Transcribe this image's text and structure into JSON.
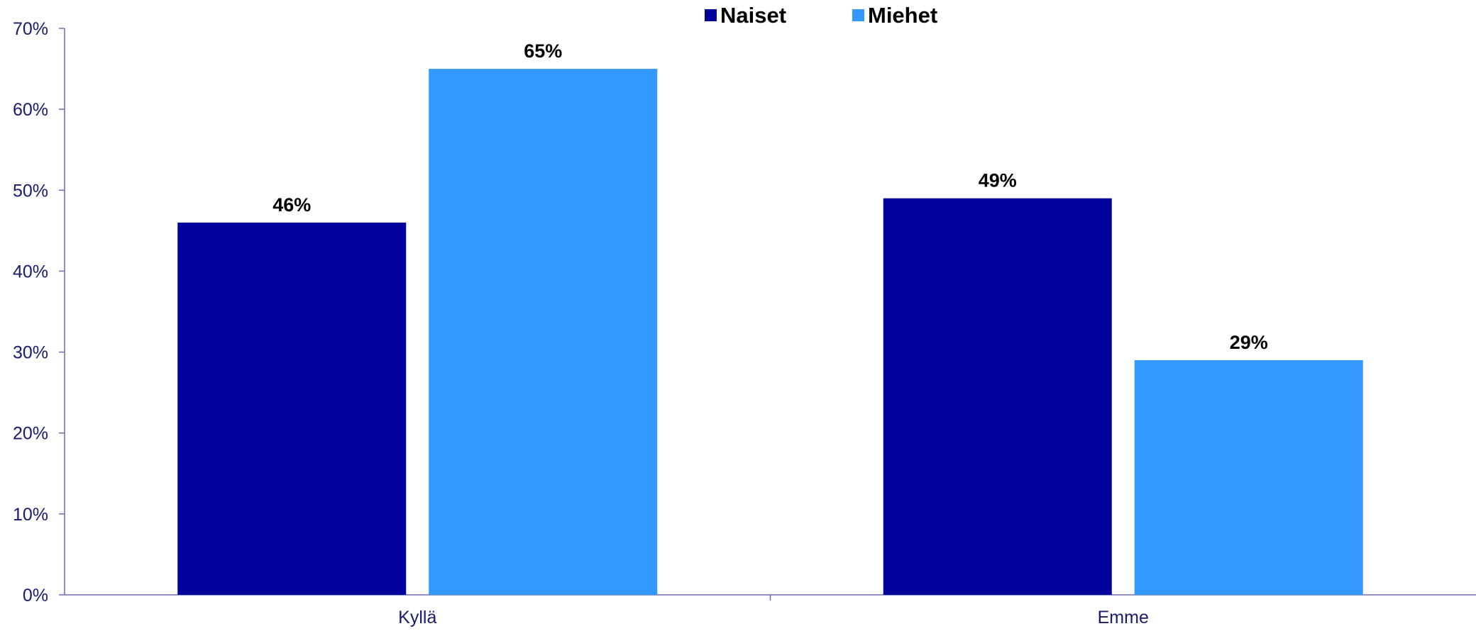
{
  "chart_data": {
    "type": "bar",
    "categories": [
      "Kyllä",
      "Emme"
    ],
    "series": [
      {
        "name": "Naiset",
        "values": [
          46,
          49
        ],
        "color": "#00009c",
        "labels": [
          "46%",
          "49%"
        ]
      },
      {
        "name": "Miehet",
        "values": [
          65,
          29
        ],
        "color": "#3399ff",
        "labels": [
          "65%",
          "29%"
        ]
      }
    ],
    "ylim": [
      0,
      70
    ],
    "yticks": [
      0,
      10,
      20,
      30,
      40,
      50,
      60,
      70
    ],
    "ytick_labels": [
      "0%",
      "10%",
      "20%",
      "30%",
      "40%",
      "50%",
      "60%",
      "70%"
    ],
    "legend_position": "top-center",
    "grid": false
  }
}
